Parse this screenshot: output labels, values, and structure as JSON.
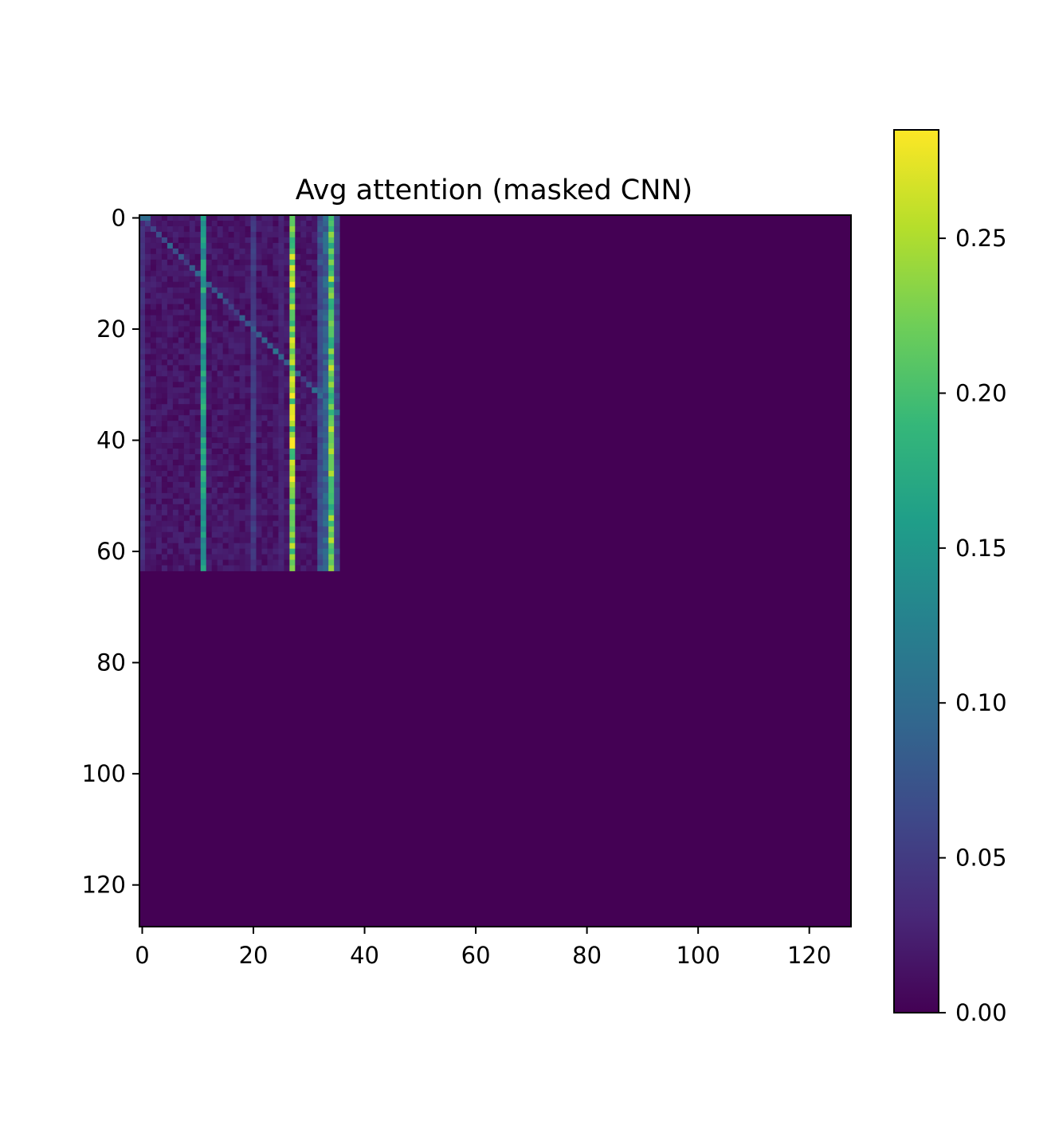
{
  "chart_data": {
    "type": "heatmap",
    "title": "Avg attention (masked CNN)",
    "xlabel": "",
    "ylabel": "",
    "colormap": "viridis",
    "colormap_stops": [
      "#440154",
      "#482878",
      "#3e4989",
      "#31688e",
      "#26828e",
      "#1f9e89",
      "#35b779",
      "#6ece58",
      "#b5de2b",
      "#fde725"
    ],
    "matrix_size": 128,
    "active_rows": 64,
    "active_cols": 36,
    "x_range": [
      -0.5,
      127.5
    ],
    "y_range": [
      -0.5,
      127.5
    ],
    "y_inverted": true,
    "x_ticks": [
      "0",
      "20",
      "40",
      "60",
      "80",
      "100",
      "120"
    ],
    "y_ticks": [
      "0",
      "20",
      "40",
      "60",
      "80",
      "100",
      "120"
    ],
    "colorbar": {
      "range": [
        0.0,
        0.285
      ],
      "ticks": [
        "0.00",
        "0.05",
        "0.10",
        "0.15",
        "0.20",
        "0.25"
      ]
    },
    "column_profile": [
      {
        "col": 0,
        "value": 0.04
      },
      {
        "col": 11,
        "value": 0.16
      },
      {
        "col": 20,
        "value": 0.05
      },
      {
        "col": 25,
        "value": 0.03
      },
      {
        "col": 27,
        "value": 0.24
      },
      {
        "col": 32,
        "value": 0.07
      },
      {
        "col": 33,
        "value": 0.09
      },
      {
        "col": 34,
        "value": 0.22
      },
      {
        "col": 35,
        "value": 0.06
      }
    ],
    "diagonal_value": 0.08,
    "background_value": 0.015,
    "masked_value": 0.0,
    "grid": false
  }
}
